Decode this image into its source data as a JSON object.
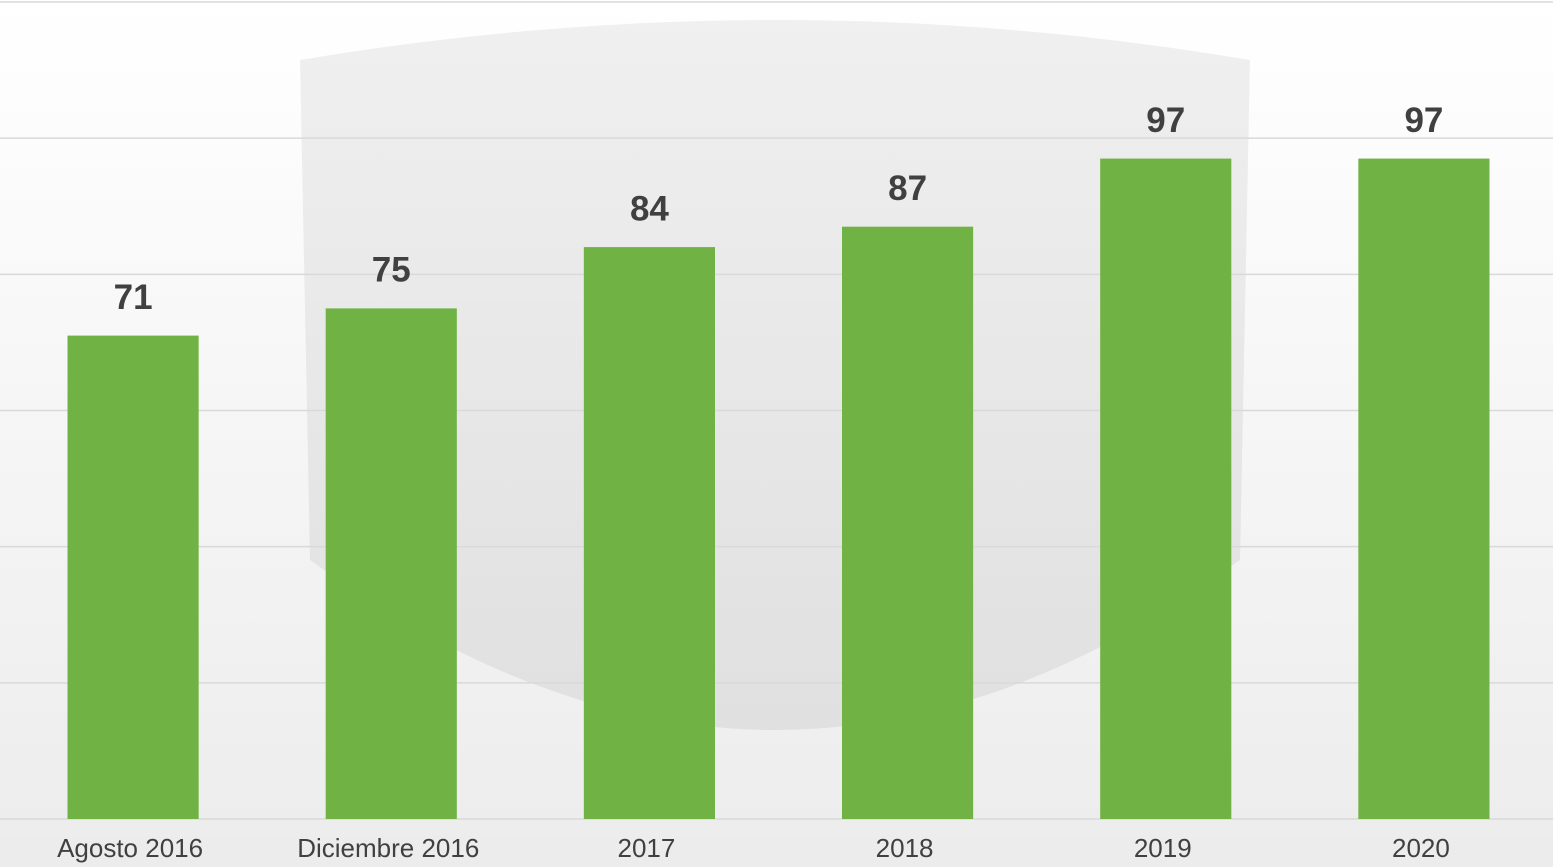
{
  "chart_data": {
    "type": "bar",
    "categories": [
      "Agosto 2016",
      "Diciembre 2016",
      "2017",
      "2018",
      "2019",
      "2020"
    ],
    "values": [
      71,
      75,
      84,
      87,
      97,
      97
    ],
    "color": "#70b244",
    "ylim": [
      0,
      120
    ],
    "yticks": [
      0,
      20,
      40,
      60,
      80,
      100,
      120
    ],
    "grid": true
  }
}
